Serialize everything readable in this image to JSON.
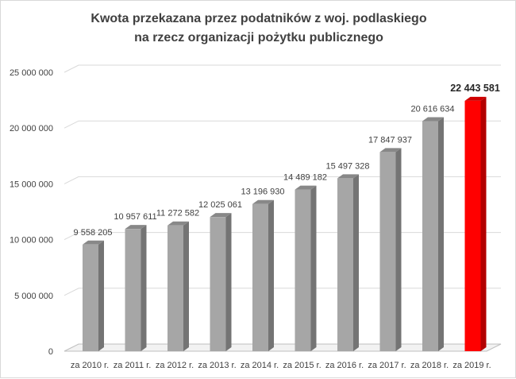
{
  "chart_data": {
    "type": "bar",
    "title": "Kwota przekazana przez podatników z woj. podlaskiego",
    "subtitle": "na rzecz organizacji pożytku publicznego",
    "categories": [
      "za 2010 r.",
      "za 2011 r.",
      "za 2012 r.",
      "za 2013 r.",
      "za 2014 r.",
      "za 2015 r.",
      "za 2016 r.",
      "za 2017 r.",
      "za 2018 r.",
      "za 2019 r."
    ],
    "values": [
      9558205,
      10957611,
      11272582,
      12025061,
      13196930,
      14489182,
      15497328,
      17847937,
      20616634,
      22443581
    ],
    "value_labels": [
      "9 558 205",
      "10 957 611",
      "11 272 582",
      "12 025 061",
      "13 196 930",
      "14 489 182",
      "15 497 328",
      "17 847 937",
      "20 616 634",
      "22 443 581"
    ],
    "highlight_index": 9,
    "yticks": [
      0,
      5000000,
      10000000,
      15000000,
      20000000,
      25000000
    ],
    "ytick_labels": [
      "0",
      "5 000 000",
      "10 000 000",
      "15 000 000",
      "20 000 000",
      "25 000 000"
    ],
    "ylim": [
      0,
      25000000
    ],
    "grid": true,
    "style": "3d-column",
    "colors": {
      "bar_front": "#a6a6a6",
      "bar_side": "#747474",
      "bar_top": "#888888",
      "highlight_front": "#ff0000",
      "highlight_side": "#b30000",
      "highlight_top": "#d00000",
      "grid": "#d9d9d9",
      "floor": "#bfbfbf",
      "text": "#404040"
    }
  }
}
